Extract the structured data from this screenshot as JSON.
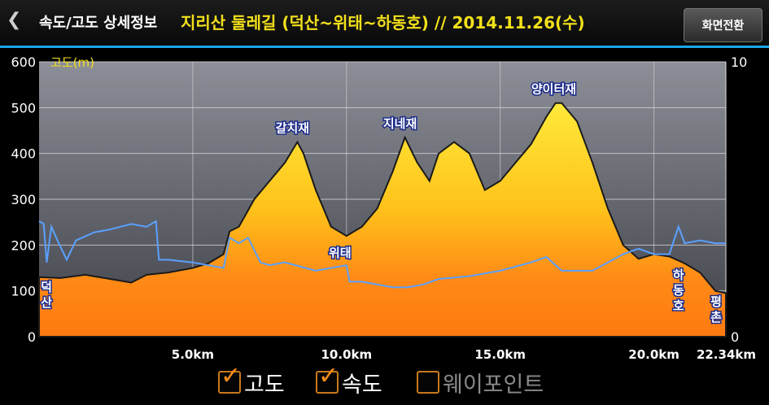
{
  "header": {
    "back_glyph": "❮",
    "title": "속도/고도 상세정보",
    "trail_title": "지리산 둘레길  (덕산~위태~하동호) // 2014.11.26(수)",
    "switch_button": "화면전환",
    "accent_color": "#1aa6e6",
    "trail_title_color": "#f2e01a"
  },
  "legend": [
    {
      "label": "고도",
      "checked": true
    },
    {
      "label": "속도",
      "checked": true
    },
    {
      "label": "웨이포인트",
      "checked": false
    }
  ],
  "chart_data": {
    "type": "area",
    "left_axis_label": "고도(m)",
    "left_ylim": [
      0,
      600
    ],
    "left_ticks": [
      "0",
      "100",
      "200",
      "300",
      "400",
      "500",
      "600"
    ],
    "right_ylim": [
      0,
      10
    ],
    "right_ticks": [
      "0",
      "10"
    ],
    "xlim": [
      0,
      22.34
    ],
    "x_ticks": [
      {
        "x": 5,
        "label": "5.0km"
      },
      {
        "x": 10,
        "label": "10.0km"
      },
      {
        "x": 15,
        "label": "15.0km"
      },
      {
        "x": 20,
        "label": "20.0km"
      },
      {
        "x": 22.34,
        "label": "22.34km"
      }
    ],
    "grid": true,
    "series": [
      {
        "name": "고도",
        "axis": "left",
        "x": [
          0,
          0.7,
          1.5,
          2.4,
          3.0,
          3.5,
          4.2,
          5.0,
          5.5,
          6.0,
          6.2,
          6.5,
          7.0,
          7.5,
          8.0,
          8.4,
          8.6,
          9.0,
          9.5,
          10.0,
          10.5,
          11.0,
          11.5,
          11.9,
          12.3,
          12.7,
          13.0,
          13.5,
          14.0,
          14.5,
          15.0,
          15.5,
          16.0,
          16.5,
          16.8,
          17.0,
          17.5,
          18.0,
          18.5,
          19.0,
          19.5,
          20.0,
          20.5,
          21.0,
          21.5,
          22.0,
          22.34
        ],
        "y": [
          130,
          128,
          135,
          125,
          118,
          135,
          140,
          150,
          160,
          180,
          230,
          240,
          300,
          340,
          380,
          425,
          400,
          320,
          240,
          220,
          240,
          280,
          360,
          435,
          380,
          340,
          400,
          425,
          400,
          320,
          340,
          380,
          420,
          480,
          510,
          510,
          470,
          380,
          280,
          200,
          170,
          180,
          175,
          160,
          140,
          100,
          95
        ]
      },
      {
        "name": "속도",
        "axis": "right",
        "x": [
          0,
          0.15,
          0.25,
          0.4,
          0.6,
          0.9,
          1.2,
          1.8,
          2.3,
          3.0,
          3.5,
          3.8,
          3.9,
          4.2,
          5.0,
          6.0,
          6.2,
          6.5,
          6.8,
          7.2,
          7.5,
          8.0,
          9.0,
          10.0,
          10.1,
          10.5,
          11.0,
          11.5,
          12.0,
          12.5,
          13.0,
          14.0,
          15.0,
          16.0,
          16.5,
          17.0,
          18.0,
          19.0,
          19.5,
          20.0,
          20.5,
          20.8,
          21.0,
          21.5,
          22.0,
          22.34
        ],
        "y": [
          4.2,
          4.1,
          2.7,
          4.0,
          3.5,
          2.8,
          3.5,
          3.8,
          3.9,
          4.1,
          4.0,
          4.2,
          2.8,
          2.8,
          2.7,
          2.5,
          3.6,
          3.4,
          3.6,
          2.7,
          2.6,
          2.7,
          2.4,
          2.6,
          2.0,
          2.0,
          1.9,
          1.8,
          1.8,
          1.9,
          2.1,
          2.2,
          2.4,
          2.7,
          2.9,
          2.4,
          2.4,
          3.0,
          3.2,
          3.0,
          3.0,
          4.0,
          3.4,
          3.5,
          3.4,
          3.4
        ]
      }
    ],
    "peak_labels": [
      {
        "text": "갈치재",
        "x": 8.4,
        "y": 425
      },
      {
        "text": "지네재",
        "x": 11.9,
        "y": 435
      },
      {
        "text": "양이터재",
        "x": 16.9,
        "y": 510
      },
      {
        "text": "위태",
        "x": 10.0,
        "y": 220
      }
    ],
    "place_labels": [
      {
        "text": "덕\n산",
        "x": 0
      },
      {
        "text": "하\n동\n호",
        "x": 20.8
      },
      {
        "text": "평\n촌",
        "x": 22.34
      }
    ]
  }
}
